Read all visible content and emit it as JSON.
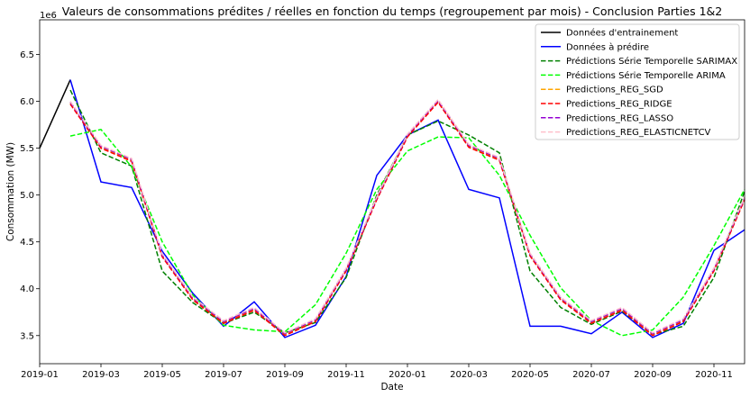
{
  "chart_data": {
    "type": "line",
    "title": "Valeurs de consommations prédites / réelles en fonction du temps (regroupement par mois) - Conclusion Parties 1&2",
    "xlabel": "Date",
    "ylabel": "Consommation (MW)",
    "y_offset_label": "1e6",
    "xlim": [
      "2019-01",
      "2020-12"
    ],
    "ylim": [
      3.2,
      6.87
    ],
    "x_ticks": [
      "2019-01",
      "2019-03",
      "2019-05",
      "2019-07",
      "2019-09",
      "2019-11",
      "2020-01",
      "2020-03",
      "2020-05",
      "2020-07",
      "2020-09",
      "2020-11"
    ],
    "y_ticks": [
      "3.5",
      "4.0",
      "4.5",
      "5.0",
      "5.5",
      "6.0",
      "6.5"
    ],
    "grid": false,
    "legend_position": "top-right",
    "series": [
      {
        "name": "Données d'entrainement",
        "color": "#000000",
        "dash": "solid",
        "x": [
          "2019-01",
          "2019-02"
        ],
        "y": [
          5.5,
          6.23
        ]
      },
      {
        "name": "Données à prédire",
        "color": "#0000ff",
        "dash": "solid",
        "x": [
          "2019-02",
          "2019-03",
          "2019-04",
          "2019-05",
          "2019-06",
          "2019-07",
          "2019-08",
          "2019-09",
          "2019-10",
          "2019-11",
          "2019-12",
          "2020-01",
          "2020-02",
          "2020-03",
          "2020-04",
          "2020-05",
          "2020-06",
          "2020-07",
          "2020-08",
          "2020-09",
          "2020-10",
          "2020-11",
          "2020-12"
        ],
        "y": [
          6.23,
          5.14,
          5.08,
          4.4,
          3.95,
          3.6,
          3.86,
          3.48,
          3.61,
          4.13,
          5.21,
          5.64,
          5.8,
          5.06,
          4.97,
          3.6,
          3.6,
          3.52,
          3.75,
          3.48,
          3.63,
          4.41,
          4.63
        ]
      },
      {
        "name": "Prédictions Série Temporelle SARIMAX",
        "color": "#008000",
        "dash": "dashed",
        "x": [
          "2019-02",
          "2019-03",
          "2019-04",
          "2019-05",
          "2019-06",
          "2019-07",
          "2019-08",
          "2019-09",
          "2019-10",
          "2019-11",
          "2019-12",
          "2020-01",
          "2020-02",
          "2020-03",
          "2020-04",
          "2020-05",
          "2020-06",
          "2020-07",
          "2020-08",
          "2020-09",
          "2020-10",
          "2020-11",
          "2020-12"
        ],
        "y": [
          6.12,
          5.45,
          5.31,
          4.19,
          3.85,
          3.63,
          3.75,
          3.53,
          3.64,
          4.12,
          5.0,
          5.64,
          5.79,
          5.64,
          5.45,
          4.19,
          3.8,
          3.62,
          3.76,
          3.51,
          3.6,
          4.12,
          5.04
        ]
      },
      {
        "name": "Prédictions Série Temporelle ARIMA",
        "color": "#00ff00",
        "dash": "dashed",
        "x": [
          "2019-02",
          "2019-03",
          "2019-04",
          "2019-05",
          "2019-06",
          "2019-07",
          "2019-08",
          "2019-09",
          "2019-10",
          "2019-11",
          "2019-12",
          "2020-01",
          "2020-02",
          "2020-03",
          "2020-04",
          "2020-05",
          "2020-06",
          "2020-07",
          "2020-08",
          "2020-09",
          "2020-10",
          "2020-11",
          "2020-12"
        ],
        "y": [
          5.63,
          5.7,
          5.3,
          4.5,
          3.93,
          3.61,
          3.56,
          3.54,
          3.83,
          4.38,
          5.06,
          5.47,
          5.62,
          5.61,
          5.21,
          4.57,
          4.01,
          3.66,
          3.5,
          3.56,
          3.91,
          4.46,
          5.06
        ]
      },
      {
        "name": "Predictions_REG_SGD",
        "color": "#ffa500",
        "dash": "dashed",
        "x": [
          "2019-02",
          "2019-03",
          "2019-04",
          "2019-05",
          "2019-06",
          "2019-07",
          "2019-08",
          "2019-09",
          "2019-10",
          "2019-11",
          "2019-12",
          "2020-01",
          "2020-02",
          "2020-03",
          "2020-04",
          "2020-05",
          "2020-06",
          "2020-07",
          "2020-08",
          "2020-09",
          "2020-10",
          "2020-11",
          "2020-12"
        ],
        "y": [
          5.98,
          5.51,
          5.37,
          4.35,
          3.89,
          3.64,
          3.78,
          3.51,
          3.66,
          4.2,
          4.96,
          5.63,
          6.0,
          5.52,
          5.38,
          4.36,
          3.89,
          3.64,
          3.78,
          3.51,
          3.66,
          4.2,
          4.96
        ]
      },
      {
        "name": "Predictions_REG_RIDGE",
        "color": "#ff0000",
        "dash": "dashed",
        "x": [
          "2019-02",
          "2019-03",
          "2019-04",
          "2019-05",
          "2019-06",
          "2019-07",
          "2019-08",
          "2019-09",
          "2019-10",
          "2019-11",
          "2019-12",
          "2020-01",
          "2020-02",
          "2020-03",
          "2020-04",
          "2020-05",
          "2020-06",
          "2020-07",
          "2020-08",
          "2020-09",
          "2020-10",
          "2020-11",
          "2020-12"
        ],
        "y": [
          5.97,
          5.5,
          5.36,
          4.34,
          3.88,
          3.63,
          3.77,
          3.5,
          3.65,
          4.19,
          4.95,
          5.62,
          5.99,
          5.51,
          5.37,
          4.35,
          3.88,
          3.63,
          3.77,
          3.5,
          3.65,
          4.19,
          4.95
        ]
      },
      {
        "name": "Predictions_REG_LASSO",
        "color": "#9400d3",
        "dash": "dashed",
        "x": [
          "2019-02",
          "2019-03",
          "2019-04",
          "2019-05",
          "2019-06",
          "2019-07",
          "2019-08",
          "2019-09",
          "2019-10",
          "2019-11",
          "2019-12",
          "2020-01",
          "2020-02",
          "2020-03",
          "2020-04",
          "2020-05",
          "2020-06",
          "2020-07",
          "2020-08",
          "2020-09",
          "2020-10",
          "2020-11",
          "2020-12"
        ],
        "y": [
          5.99,
          5.52,
          5.38,
          4.36,
          3.9,
          3.65,
          3.79,
          3.52,
          3.67,
          4.21,
          4.97,
          5.64,
          6.01,
          5.53,
          5.39,
          4.37,
          3.9,
          3.65,
          3.79,
          3.52,
          3.67,
          4.21,
          4.97
        ]
      },
      {
        "name": "Predictions_REG_ELASTICNETCV",
        "color": "#ffc0cb",
        "dash": "dashed",
        "x": [
          "2019-02",
          "2019-03",
          "2019-04",
          "2019-05",
          "2019-06",
          "2019-07",
          "2019-08",
          "2019-09",
          "2019-10",
          "2019-11",
          "2019-12",
          "2020-01",
          "2020-02",
          "2020-03",
          "2020-04",
          "2020-05",
          "2020-06",
          "2020-07",
          "2020-08",
          "2020-09",
          "2020-10",
          "2020-11",
          "2020-12"
        ],
        "y": [
          6.0,
          5.53,
          5.39,
          4.37,
          3.91,
          3.66,
          3.8,
          3.53,
          3.68,
          4.22,
          4.98,
          5.65,
          6.02,
          5.54,
          5.4,
          4.38,
          3.91,
          3.66,
          3.8,
          3.53,
          3.68,
          4.22,
          4.98
        ]
      }
    ]
  }
}
